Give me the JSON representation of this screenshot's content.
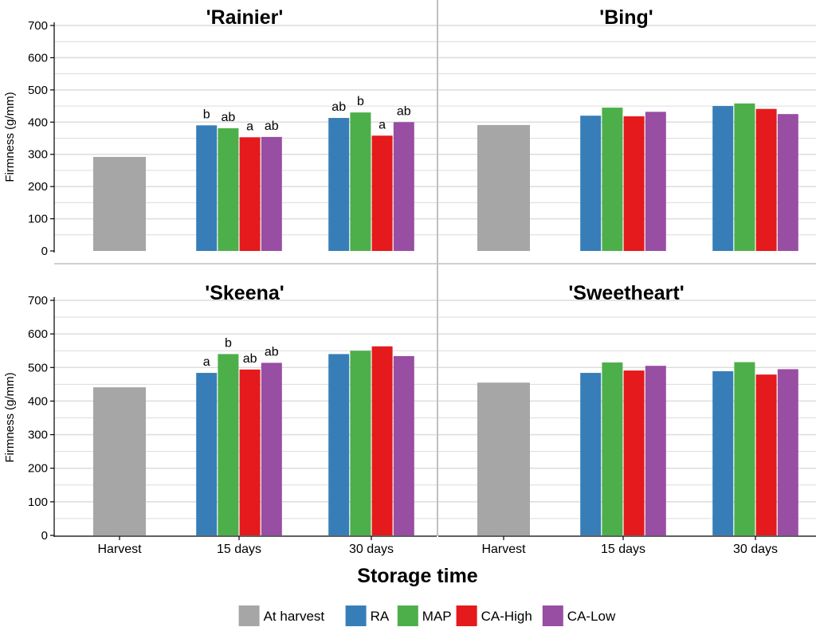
{
  "colors": {
    "At harvest": "#a6a6a6",
    "RA": "#377eb8",
    "MAP": "#4daf4a",
    "CA-High": "#e41a1c",
    "CA-Low": "#984ea3",
    "panel_bg": "#ffffff",
    "grid": "#dcdcdc",
    "divider": "#c0c0c0"
  },
  "xlabel": "Storage time",
  "ylabel": "Firmness (g/mm)",
  "legend": [
    "At harvest",
    "RA",
    "MAP",
    "CA-High",
    "CA-Low"
  ],
  "chart_data": {
    "type": "bar",
    "xlabel": "Storage time",
    "ylabel": "Firmness (g/mm)",
    "ylim": [
      0,
      700
    ],
    "yticks": [
      0,
      100,
      200,
      300,
      400,
      500,
      600,
      700
    ],
    "categories": [
      "Harvest",
      "15 days",
      "30 days"
    ],
    "grid": true,
    "legend_position": "bottom",
    "panels": [
      {
        "title": "'Rainier'",
        "harvest": 292,
        "series": [
          {
            "name": "RA",
            "values": [
              390,
              413
            ],
            "letters": [
              "b",
              "ab"
            ]
          },
          {
            "name": "MAP",
            "values": [
              381,
              430
            ],
            "letters": [
              "ab",
              "b"
            ]
          },
          {
            "name": "CA-High",
            "values": [
              353,
              358
            ],
            "letters": [
              "a",
              "a"
            ]
          },
          {
            "name": "CA-Low",
            "values": [
              354,
              400
            ],
            "letters": [
              "ab",
              "ab"
            ]
          }
        ]
      },
      {
        "title": "'Bing'",
        "harvest": 391,
        "series": [
          {
            "name": "RA",
            "values": [
              420,
              450
            ],
            "letters": [
              "",
              ""
            ]
          },
          {
            "name": "MAP",
            "values": [
              445,
              458
            ],
            "letters": [
              "",
              ""
            ]
          },
          {
            "name": "CA-High",
            "values": [
              418,
              441
            ],
            "letters": [
              "",
              ""
            ]
          },
          {
            "name": "CA-Low",
            "values": [
              432,
              425
            ],
            "letters": [
              "",
              ""
            ]
          }
        ]
      },
      {
        "title": "'Skeena'",
        "harvest": 441,
        "series": [
          {
            "name": "RA",
            "values": [
              484,
              540
            ],
            "letters": [
              "a",
              ""
            ]
          },
          {
            "name": "MAP",
            "values": [
              540,
              550
            ],
            "letters": [
              "b",
              ""
            ]
          },
          {
            "name": "CA-High",
            "values": [
              494,
              563
            ],
            "letters": [
              "ab",
              ""
            ]
          },
          {
            "name": "CA-Low",
            "values": [
              514,
              534
            ],
            "letters": [
              "ab",
              ""
            ]
          }
        ]
      },
      {
        "title": "'Sweetheart'",
        "harvest": 455,
        "series": [
          {
            "name": "RA",
            "values": [
              484,
              489
            ],
            "letters": [
              "",
              ""
            ]
          },
          {
            "name": "MAP",
            "values": [
              515,
              516
            ],
            "letters": [
              "",
              ""
            ]
          },
          {
            "name": "CA-High",
            "values": [
              491,
              479
            ],
            "letters": [
              "",
              ""
            ]
          },
          {
            "name": "CA-Low",
            "values": [
              505,
              495
            ],
            "letters": [
              "",
              ""
            ]
          }
        ]
      }
    ]
  }
}
